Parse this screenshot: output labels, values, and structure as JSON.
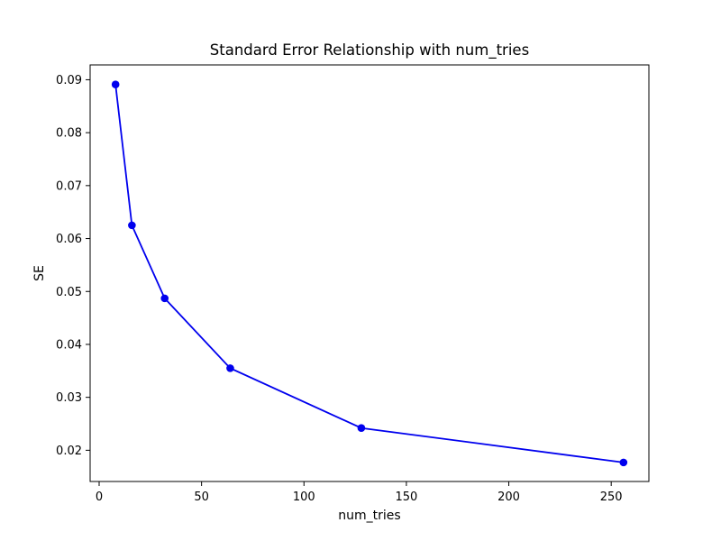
{
  "chart_data": {
    "type": "line",
    "title": "Standard Error Relationship with num_tries",
    "xlabel": "num_tries",
    "ylabel": "SE",
    "x": [
      8,
      16,
      32,
      64,
      128,
      256
    ],
    "y": [
      0.0891,
      0.0625,
      0.0487,
      0.0355,
      0.0242,
      0.0177
    ],
    "series_name": "SE vs num_tries",
    "line_color": "#0000ee",
    "marker": "circle",
    "marker_color": "#0000ee",
    "xlim": [
      -4.4,
      268.4
    ],
    "ylim": [
      0.0141,
      0.0928
    ],
    "xticks": [
      0,
      50,
      100,
      150,
      200,
      250
    ],
    "yticks": [
      0.02,
      0.03,
      0.04,
      0.05,
      0.06,
      0.07,
      0.08,
      0.09
    ],
    "y_tick_decimals": 2,
    "grid": false,
    "legend_position": "none",
    "background_color": "#ffffff",
    "spine_color": "#000000"
  }
}
